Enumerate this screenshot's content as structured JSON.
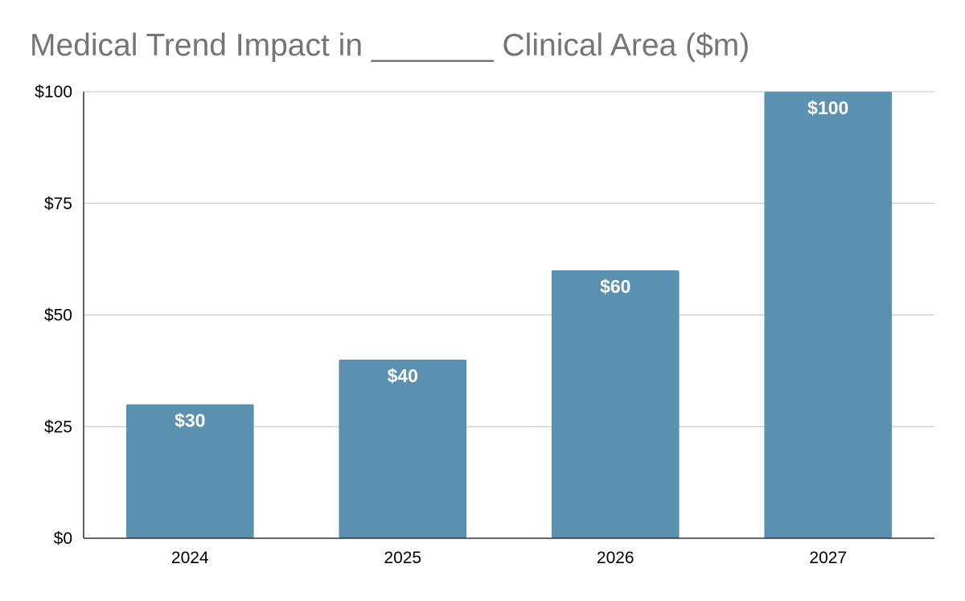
{
  "chart_data": {
    "type": "bar",
    "title": "Medical Trend Impact in _______ Clinical Area ($m)",
    "xlabel": "",
    "ylabel": "",
    "categories": [
      "2024",
      "2025",
      "2026",
      "2027"
    ],
    "values": [
      30,
      40,
      60,
      100
    ],
    "value_labels": [
      "$30",
      "$40",
      "$60",
      "$100"
    ],
    "y_ticks": [
      0,
      25,
      50,
      75,
      100
    ],
    "y_tick_labels": [
      "$0",
      "$25",
      "$50",
      "$75",
      "$100"
    ],
    "ylim": [
      0,
      100
    ],
    "grid": true,
    "legend": "none",
    "colors": {
      "bar": "#5a91b0",
      "grid": "#cccccc",
      "axis": "#333333",
      "title": "#757575"
    }
  }
}
